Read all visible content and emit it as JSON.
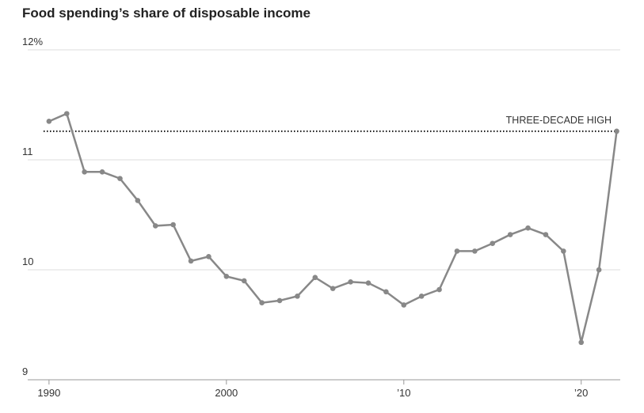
{
  "chart_data": {
    "type": "line",
    "title": "Food spending’s share of disposable income",
    "x": [
      1990,
      1991,
      1992,
      1993,
      1994,
      1995,
      1996,
      1997,
      1998,
      1999,
      2000,
      2001,
      2002,
      2003,
      2004,
      2005,
      2006,
      2007,
      2008,
      2009,
      2010,
      2011,
      2012,
      2013,
      2014,
      2015,
      2016,
      2017,
      2018,
      2019,
      2020,
      2021,
      2022
    ],
    "series": [
      {
        "name": "Food spending share",
        "color": "#888888",
        "values": [
          11.35,
          11.42,
          10.89,
          10.89,
          10.83,
          10.63,
          10.4,
          10.41,
          10.08,
          10.12,
          9.94,
          9.9,
          9.7,
          9.72,
          9.76,
          9.93,
          9.83,
          9.89,
          9.88,
          9.8,
          9.68,
          9.76,
          9.82,
          10.17,
          10.17,
          10.24,
          10.32,
          10.38,
          10.32,
          10.17,
          9.34,
          10.0,
          11.26
        ]
      }
    ],
    "xlim": [
      1988.8,
      2022.2
    ],
    "xticks": [
      {
        "value": 1990,
        "label": "1990"
      },
      2000,
      {
        "value": 2010,
        "label": "’10"
      },
      {
        "value": 2020,
        "label": "’20"
      }
    ],
    "ylim": [
      9,
      12
    ],
    "yticks": [
      9,
      10,
      11,
      {
        "value": 12,
        "label": "12%"
      }
    ],
    "grid": true,
    "reference_line": {
      "value": 11.26,
      "label": "THREE-DECADE HIGH"
    }
  }
}
